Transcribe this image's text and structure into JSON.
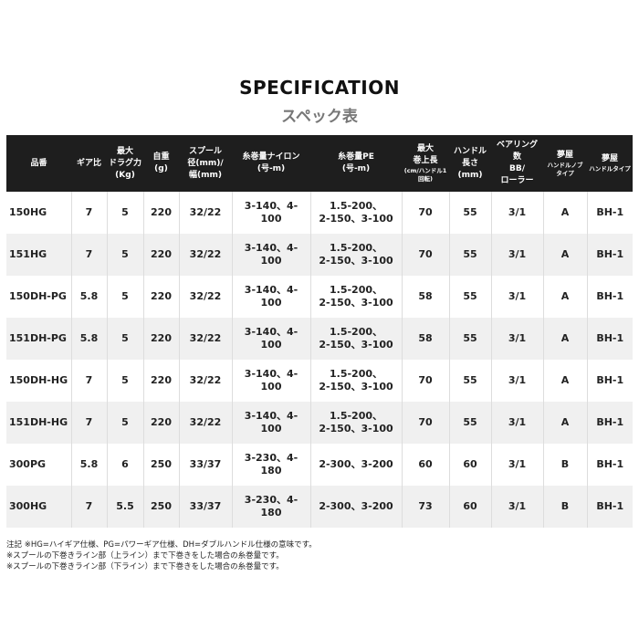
{
  "title": "SPECIFICATION",
  "subtitle": "スペック表",
  "columns": [
    {
      "lines": [
        "品番"
      ]
    },
    {
      "lines": [
        "ギア比"
      ]
    },
    {
      "lines": [
        "最大",
        "ドラグ力",
        "(Kg)"
      ]
    },
    {
      "lines": [
        "自重",
        "(g)"
      ]
    },
    {
      "lines": [
        "スプール",
        "径(mm)/",
        "幅(mm)"
      ]
    },
    {
      "lines": [
        "糸巻量ナイロン",
        "(号-m)"
      ]
    },
    {
      "lines": [
        "糸巻量PE",
        "(号-m)"
      ]
    },
    {
      "lines": [
        "最大",
        "巻上長"
      ],
      "small": "(cm/ハンドル1回転)"
    },
    {
      "lines": [
        "ハンドル",
        "長さ",
        "(mm)"
      ]
    },
    {
      "lines": [
        "ベアリング数",
        "BB/",
        "ローラー"
      ]
    },
    {
      "lines": [
        "夢屋"
      ],
      "small": "ハンドルノブタイプ"
    },
    {
      "lines": [
        "夢屋"
      ],
      "small": "ハンドルタイプ"
    }
  ],
  "rows": [
    [
      "150HG",
      "7",
      "5",
      "220",
      "32/22",
      "3-140、4-100",
      [
        "1.5-200、",
        "2-150、3-100"
      ],
      "70",
      "55",
      "3/1",
      "A",
      "BH-1"
    ],
    [
      "151HG",
      "7",
      "5",
      "220",
      "32/22",
      "3-140、4-100",
      [
        "1.5-200、",
        "2-150、3-100"
      ],
      "70",
      "55",
      "3/1",
      "A",
      "BH-1"
    ],
    [
      "150DH-PG",
      "5.8",
      "5",
      "220",
      "32/22",
      "3-140、4-100",
      [
        "1.5-200、",
        "2-150、3-100"
      ],
      "58",
      "55",
      "3/1",
      "A",
      "BH-1"
    ],
    [
      "151DH-PG",
      "5.8",
      "5",
      "220",
      "32/22",
      "3-140、4-100",
      [
        "1.5-200、",
        "2-150、3-100"
      ],
      "58",
      "55",
      "3/1",
      "A",
      "BH-1"
    ],
    [
      "150DH-HG",
      "7",
      "5",
      "220",
      "32/22",
      "3-140、4-100",
      [
        "1.5-200、",
        "2-150、3-100"
      ],
      "70",
      "55",
      "3/1",
      "A",
      "BH-1"
    ],
    [
      "151DH-HG",
      "7",
      "5",
      "220",
      "32/22",
      "3-140、4-100",
      [
        "1.5-200、",
        "2-150、3-100"
      ],
      "70",
      "55",
      "3/1",
      "A",
      "BH-1"
    ],
    [
      "300PG",
      "5.8",
      "6",
      "250",
      "33/37",
      "3-230、4-180",
      [
        "2-300、3-200"
      ],
      "60",
      "60",
      "3/1",
      "B",
      "BH-1"
    ],
    [
      "300HG",
      "7",
      "5.5",
      "250",
      "33/37",
      "3-230、4-180",
      [
        "2-300、3-200"
      ],
      "73",
      "60",
      "3/1",
      "B",
      "BH-1"
    ]
  ],
  "notes": [
    "注記 ※HG=ハイギア仕様、PG=パワーギア仕様、DH=ダブルハンドル仕様の意味です。",
    "※スプールの下巻きライン部（上ライン）まで下巻きをした場合の糸巻量です。",
    "※スプールの下巻きライン部（下ライン）まで下巻きをした場合の糸巻量です。"
  ]
}
